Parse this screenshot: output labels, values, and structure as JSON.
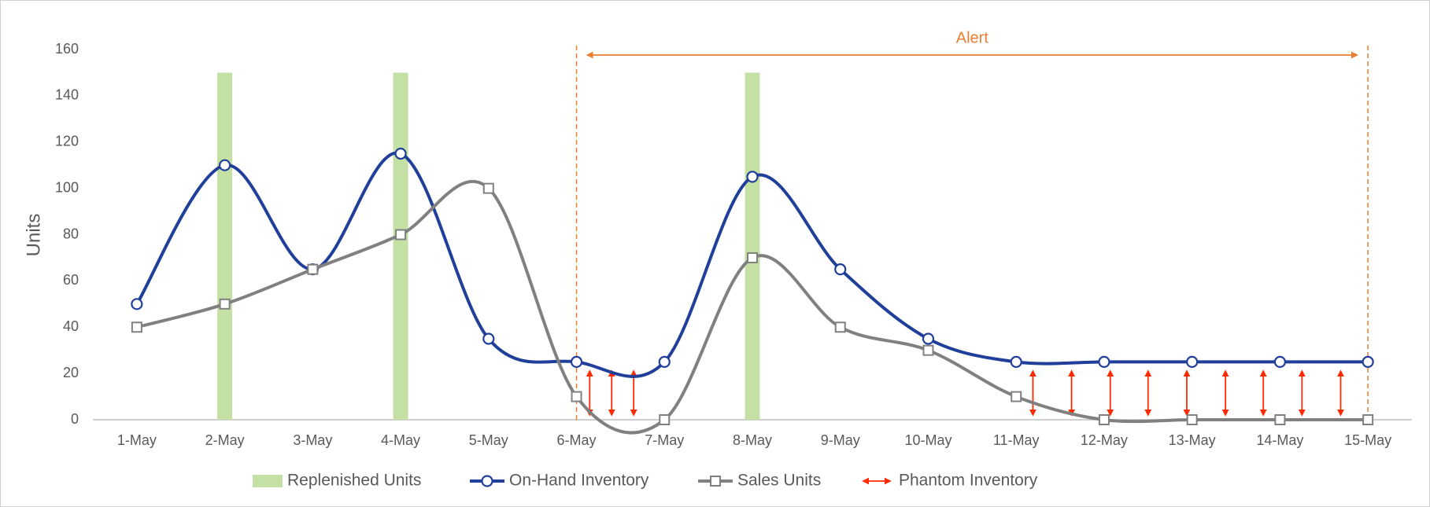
{
  "chart_data": {
    "type": "line",
    "y_label": "Units",
    "categories": [
      "1-May",
      "2-May",
      "3-May",
      "4-May",
      "5-May",
      "6-May",
      "7-May",
      "8-May",
      "9-May",
      "10-May",
      "11-May",
      "12-May",
      "13-May",
      "14-May",
      "15-May"
    ],
    "ylim": [
      0,
      160
    ],
    "yticks": [
      0,
      20,
      40,
      60,
      80,
      100,
      120,
      140,
      160
    ],
    "grid": false,
    "smooth": true,
    "legend": "bottom",
    "alert": {
      "label": "Alert",
      "from": "6-May",
      "to": "15-May",
      "color": "#ed7d31"
    },
    "series": [
      {
        "name": "Replenished Units",
        "mark": "bar",
        "color": "#c5e0a5",
        "values": [
          null,
          150,
          null,
          150,
          null,
          null,
          null,
          150,
          null,
          null,
          null,
          null,
          null,
          null,
          null
        ]
      },
      {
        "name": "On-Hand Inventory",
        "mark": "line",
        "marker": "circle",
        "color": "#203f9a",
        "values": [
          50,
          110,
          65,
          115,
          35,
          25,
          25,
          105,
          65,
          35,
          25,
          25,
          25,
          25,
          25
        ]
      },
      {
        "name": "Sales Units",
        "mark": "line",
        "marker": "square",
        "color": "#808080",
        "values": [
          40,
          50,
          65,
          80,
          100,
          10,
          0,
          70,
          40,
          30,
          10,
          0,
          0,
          0,
          0
        ]
      },
      {
        "name": "Phantom Inventory",
        "mark": "arrow",
        "color": "#ff2a00"
      }
    ]
  }
}
